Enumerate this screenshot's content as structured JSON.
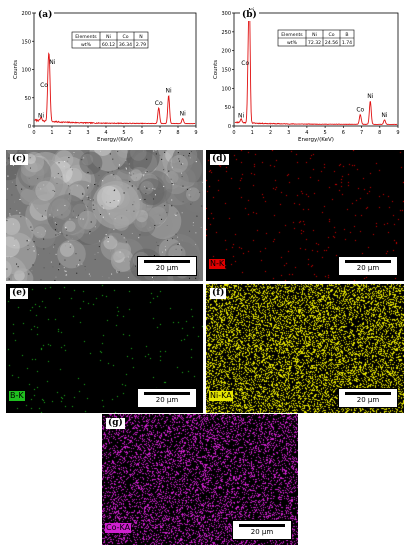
{
  "colors": {
    "spectrum": "#e01010",
    "n_map": "#e00000",
    "b_map": "#1fbf1f",
    "ni_map": "#e6e600",
    "co_map": "#d020d0"
  },
  "panel_a": {
    "label": "(a)",
    "y_ticks": [
      "0",
      "50",
      "100",
      "150",
      "200"
    ],
    "y_label": "Counts",
    "x_ticks": [
      "0",
      "1",
      "2",
      "3",
      "4",
      "5",
      "6",
      "7",
      "8",
      "9"
    ],
    "x_label": "Energy/(KeV)",
    "peaks": [
      "Co",
      "Ni",
      "Ni",
      "Co",
      "Ni",
      "Ni"
    ],
    "table": {
      "headers": [
        "Elements",
        "Ni",
        "Co",
        "N"
      ],
      "row": [
        "wt%",
        "60.12",
        "36.34",
        "2.79"
      ]
    }
  },
  "panel_b": {
    "label": "(b)",
    "y_ticks": [
      "0",
      "50",
      "100",
      "150",
      "200",
      "250",
      "300"
    ],
    "y_label": "Counts",
    "x_ticks": [
      "0",
      "1",
      "2",
      "3",
      "4",
      "5",
      "6",
      "7",
      "8",
      "9"
    ],
    "x_label": "Energy/(KeV)",
    "peaks": [
      "Co",
      "Ni",
      "Ni",
      "Co",
      "Ni",
      "Ni"
    ],
    "table": {
      "headers": [
        "Elements",
        "Ni",
        "Co",
        "B"
      ],
      "row": [
        "wt%",
        "72.32",
        "24.56",
        "1.74"
      ]
    }
  },
  "panel_c": {
    "label": "(c)",
    "scale": "20 μm"
  },
  "panel_d": {
    "label": "(d)",
    "element": "N-K",
    "scale": "20 μm"
  },
  "panel_e": {
    "label": "(e)",
    "element": "B-K",
    "scale": "20 μm"
  },
  "panel_f": {
    "label": "(f)",
    "element": "Ni-KA",
    "scale": "20 μm"
  },
  "panel_g": {
    "label": "(g)",
    "element": "Co-KA",
    "scale": "20 μm"
  }
}
